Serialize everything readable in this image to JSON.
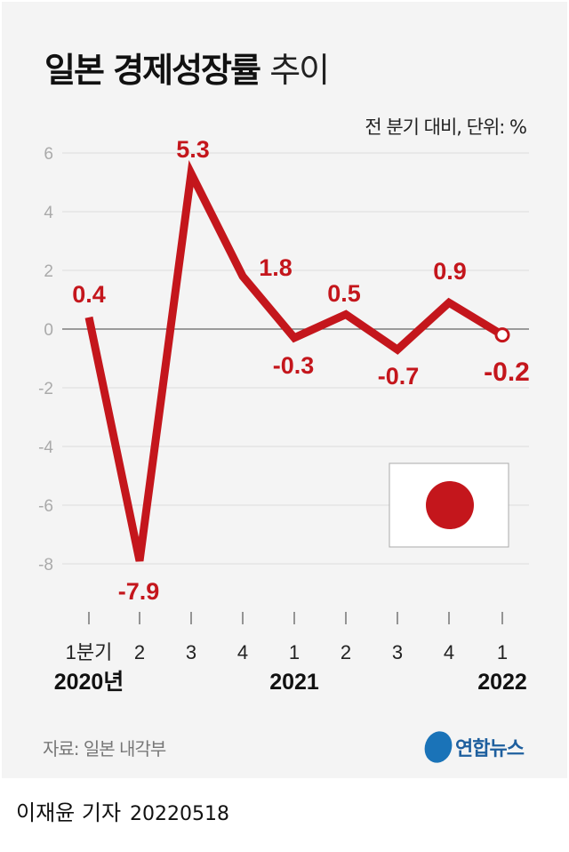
{
  "header": {
    "title_bold": "일본 경제성장률",
    "title_light": "추이",
    "unit_note": "전 분기 대비, 단위: %"
  },
  "chart_data": {
    "type": "line",
    "title": "일본 경제성장률 추이",
    "ylabel": "전 분기 대비, 단위: %",
    "ylim": [
      -8,
      6
    ],
    "yticks": [
      "6",
      "4",
      "2",
      "0",
      "-2",
      "-4",
      "-6",
      "-8"
    ],
    "categories": [
      "1분기",
      "2",
      "3",
      "4",
      "1",
      "2",
      "3",
      "4",
      "1"
    ],
    "year_labels": [
      {
        "label": "2020년",
        "index": 0
      },
      {
        "label": "2021",
        "index": 4
      },
      {
        "label": "2022",
        "index": 8
      }
    ],
    "values": [
      0.4,
      -7.9,
      5.3,
      1.8,
      -0.3,
      0.5,
      -0.7,
      0.9,
      -0.2
    ],
    "data_labels": [
      "0.4",
      "-7.9",
      "5.3",
      "1.8",
      "-0.3",
      "0.5",
      "-0.7",
      "0.9",
      "-0.2"
    ],
    "grid": true,
    "line_color": "#c4161c",
    "last_point_marker": "hollow-circle"
  },
  "decoration": {
    "flag": "japan-flag",
    "flag_color": "#c4161c"
  },
  "footer": {
    "source": "자료: 일본 내각부",
    "logo_text": "연합뉴스",
    "author": "이재윤 기자",
    "date": "20220518"
  }
}
